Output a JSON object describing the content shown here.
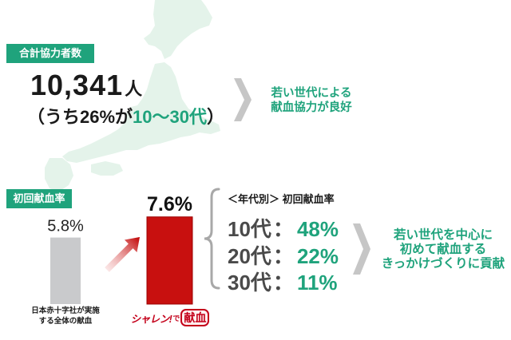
{
  "colors": {
    "accent_green": "#1fa37c",
    "chevron_gray": "#c6c6c6",
    "brace_gray": "#a8a8a8",
    "map_green": "#e4f3ea",
    "arrow_red": "#c00000",
    "logo_red": "#c4001a"
  },
  "icons": {
    "summary_arrow": "chevron-right-icon",
    "trend_arrow": "up-right-arrow-icon",
    "group_brace": "curly-brace-icon",
    "background": "japan-map"
  },
  "section1": {
    "badge": "合計協力者数",
    "total": {
      "number": "10,341",
      "unit": "人"
    },
    "breakdown": {
      "prefix": "（うち26%が",
      "highlight": "10〜30代",
      "suffix": "）"
    },
    "conclusion": [
      "若い世代による",
      "献血協力が良好"
    ]
  },
  "chart_data": {
    "type": "bar",
    "title": "初回献血率",
    "categories": [
      {
        "lines": [
          "日本赤十字社が実施",
          "する全体の献血"
        ]
      },
      {
        "logo": {
          "main": "シャレン!",
          "particle": "で",
          "boxed": "献血"
        }
      }
    ],
    "values": [
      5.8,
      7.6
    ],
    "value_labels": [
      "5.8%",
      "7.6%"
    ],
    "colors": [
      "#c9cacc",
      "#c8100f"
    ],
    "ylim": [
      0,
      8
    ],
    "grid": false
  },
  "section2": {
    "age_breakdown": {
      "heading": "＜年代別＞ 初回献血率",
      "separator": "：",
      "rows": [
        {
          "age": "10代",
          "value": "48%"
        },
        {
          "age": "20代",
          "value": "22%"
        },
        {
          "age": "30代",
          "value": "11%"
        }
      ]
    },
    "conclusion": [
      "若い世代を中心に",
      "初めて献血する",
      "きっかけづくりに貢献"
    ]
  }
}
